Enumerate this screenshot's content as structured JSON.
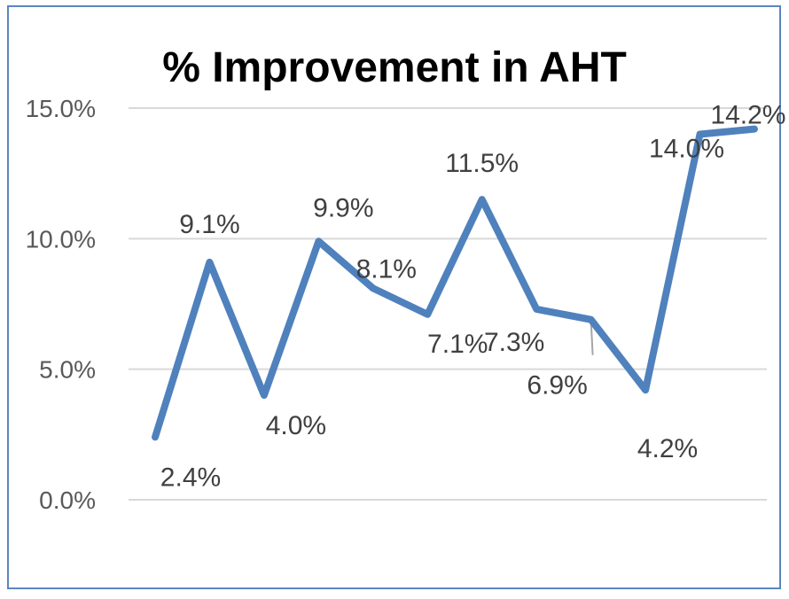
{
  "chart_data": {
    "type": "line",
    "title": "% Improvement in AHT",
    "xlabel": "",
    "ylabel": "",
    "ylim": [
      0,
      15
    ],
    "yticks": [
      "0.0%",
      "5.0%",
      "10.0%",
      "15.0%"
    ],
    "grid": true,
    "legend": "none",
    "series": [
      {
        "color": "#4f81bd",
        "values": [
          2.4,
          9.1,
          4.0,
          9.9,
          8.1,
          7.1,
          11.5,
          7.3,
          6.9,
          4.2,
          14.0,
          14.2
        ],
        "labels": [
          "2.4%",
          "9.1%",
          "4.0%",
          "9.9%",
          "8.1%",
          "7.1%",
          "11.5%",
          "7.3%",
          "6.9%",
          "4.2%",
          "14.0%",
          "14.2%"
        ]
      }
    ]
  }
}
